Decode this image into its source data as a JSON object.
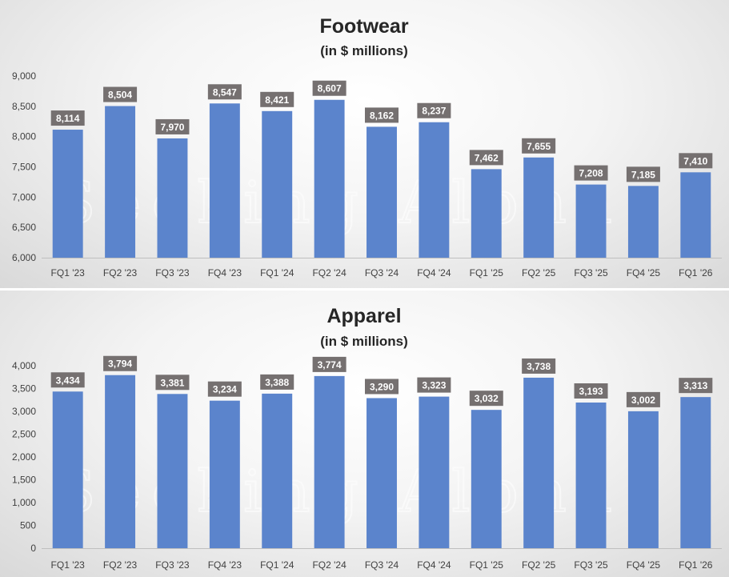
{
  "watermark": "Seeking Alpha",
  "chart_data": [
    {
      "type": "bar",
      "title": "Footwear",
      "subtitle": "(in $ millions)",
      "categories": [
        "FQ1 '23",
        "FQ2 '23",
        "FQ3 '23",
        "FQ4 '23",
        "FQ1 '24",
        "FQ2 '24",
        "FQ3 '24",
        "FQ4 '24",
        "FQ1 '25",
        "FQ2 '25",
        "FQ3 '25",
        "FQ4 '25",
        "FQ1 '26"
      ],
      "values": [
        8114,
        8504,
        7970,
        8547,
        8421,
        8607,
        8162,
        8237,
        7462,
        7655,
        7208,
        7185,
        7410
      ],
      "data_labels": [
        "8,114",
        "8,504",
        "7,970",
        "8,547",
        "8,421",
        "8,607",
        "8,162",
        "8,237",
        "7,462",
        "7,655",
        "7,208",
        "7,185",
        "7,410"
      ],
      "ylim": [
        6000,
        9000
      ],
      "yticks": [
        6000,
        6500,
        7000,
        7500,
        8000,
        8500,
        9000
      ],
      "ytick_labels": [
        "6,000",
        "6,500",
        "7,000",
        "7,500",
        "8,000",
        "8,500",
        "9,000"
      ],
      "bar_color": "#5b84cc",
      "label_box_color": "#757070",
      "grid": false,
      "legend": "none"
    },
    {
      "type": "bar",
      "title": "Apparel",
      "subtitle": "(in $ millions)",
      "categories": [
        "FQ1 '23",
        "FQ2 '23",
        "FQ3 '23",
        "FQ4 '23",
        "FQ1 '24",
        "FQ2 '24",
        "FQ3 '24",
        "FQ4 '24",
        "FQ1 '25",
        "FQ2 '25",
        "FQ3 '25",
        "FQ4 '25",
        "FQ1 '26"
      ],
      "values": [
        3434,
        3794,
        3381,
        3234,
        3388,
        3774,
        3290,
        3323,
        3032,
        3738,
        3193,
        3002,
        3313
      ],
      "data_labels": [
        "3,434",
        "3,794",
        "3,381",
        "3,234",
        "3,388",
        "3,774",
        "3,290",
        "3,323",
        "3,032",
        "3,738",
        "3,193",
        "3,002",
        "3,313"
      ],
      "ylim": [
        0,
        4000
      ],
      "yticks": [
        0,
        500,
        1000,
        1500,
        2000,
        2500,
        3000,
        3500,
        4000
      ],
      "ytick_labels": [
        "0",
        "500",
        "1,000",
        "1,500",
        "2,000",
        "2,500",
        "3,000",
        "3,500",
        "4,000"
      ],
      "bar_color": "#5b84cc",
      "label_box_color": "#757070",
      "grid": false,
      "legend": "none"
    }
  ]
}
